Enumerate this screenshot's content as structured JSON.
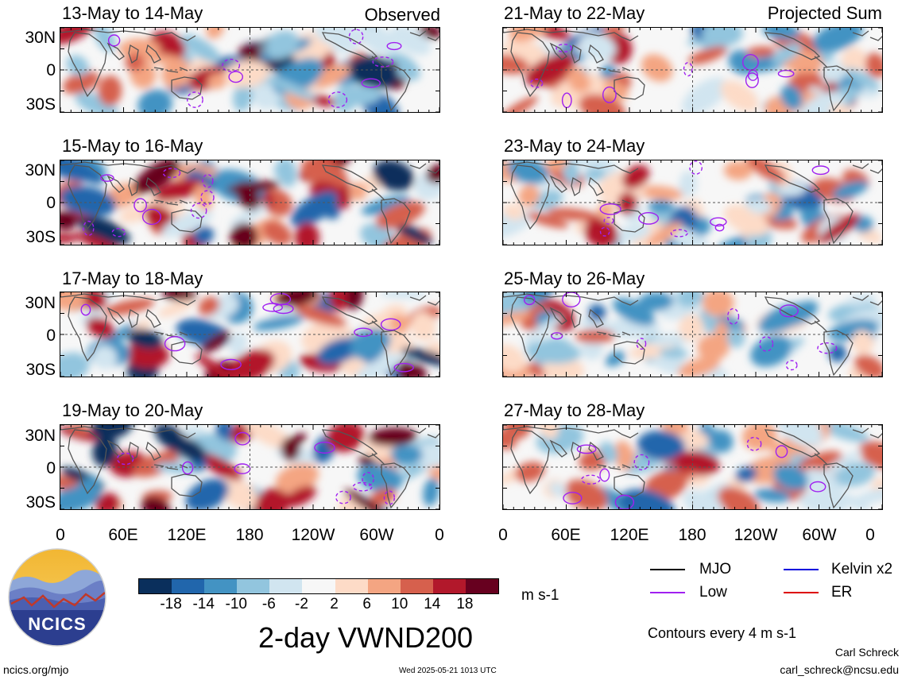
{
  "header": {
    "left_tag": "Observed",
    "right_tag": "Projected Sum"
  },
  "panels_left": [
    {
      "title": "13-May to 14-May",
      "seed": 1
    },
    {
      "title": "15-May to 16-May",
      "seed": 2
    },
    {
      "title": "17-May to 18-May",
      "seed": 3
    },
    {
      "title": "19-May to 20-May",
      "seed": 4
    }
  ],
  "panels_right": [
    {
      "title": "21-May to 22-May",
      "seed": 5
    },
    {
      "title": "23-May to 24-May",
      "seed": 6
    },
    {
      "title": "25-May to 26-May",
      "seed": 7
    },
    {
      "title": "27-May to 28-May",
      "seed": 8
    }
  ],
  "lat_labels": [
    "30N",
    "0",
    "30S"
  ],
  "lon_labels": [
    "0",
    "60E",
    "120E",
    "180",
    "120W",
    "60W",
    "0"
  ],
  "colorbar": {
    "colors": [
      "#0a2f5c",
      "#2166ac",
      "#4393c3",
      "#92c5de",
      "#d1e5f0",
      "#f7f7f7",
      "#fddbc7",
      "#f4a582",
      "#d6604d",
      "#b2182b",
      "#67001f"
    ],
    "labels": [
      "-18",
      "-14",
      "-10",
      "-6",
      "-2",
      "2",
      "6",
      "10",
      "14",
      "18"
    ],
    "units": "m s-1"
  },
  "legend": [
    {
      "label": "MJO",
      "color": "#000000"
    },
    {
      "label": "Kelvin x2",
      "color": "#0000dd"
    },
    {
      "label": "Low",
      "color": "#a020f0"
    },
    {
      "label": "ER",
      "color": "#dd0000"
    }
  ],
  "main_title": "2-day VWND200",
  "contour_note": "Contours every 4 m s-1",
  "logo_text": "NCICS",
  "footer": {
    "url": "ncics.org/mjo",
    "timestamp": "Wed 2025-05-21 1013 UTC",
    "author": "Carl Schreck",
    "email": "carl_schreck@ncsu.edu"
  }
}
